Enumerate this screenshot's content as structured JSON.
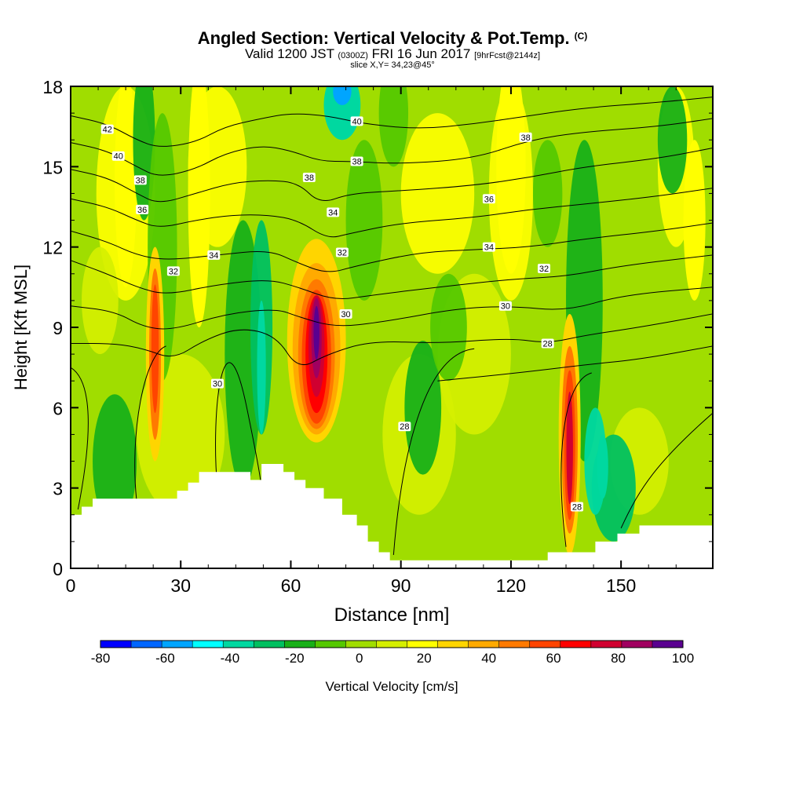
{
  "header": {
    "title": "Angled Section: Vertical Velocity & Pot.Temp.",
    "copyright": "(C)",
    "valid_main": "Valid 1200 JST",
    "valid_utc": "(0300Z)",
    "valid_date": "FRI 16 Jun 2017",
    "forecast": "[9hrFcst@2144z]",
    "slice": "slice X,Y= 34,23@45°"
  },
  "chart_data": {
    "type": "heatmap",
    "title": "Angled Section: Vertical Velocity & Pot.Temp.",
    "xlabel": "Distance [nm]",
    "ylabel": "Height [Kft MSL]",
    "xlim": [
      0,
      175
    ],
    "ylim": [
      0,
      18
    ],
    "x_ticks": [
      "0",
      "30",
      "60",
      "90",
      "120",
      "150"
    ],
    "y_ticks": [
      "0",
      "3",
      "6",
      "9",
      "12",
      "15",
      "18"
    ],
    "colorbar": {
      "label": "Vertical Velocity [cm/s]",
      "tick_labels": [
        "-80",
        "-60",
        "-40",
        "-20",
        "0",
        "20",
        "40",
        "60",
        "80",
        "100"
      ],
      "bins": [
        -80,
        -70,
        -60,
        -50,
        -40,
        -30,
        -20,
        -10,
        0,
        10,
        20,
        30,
        40,
        50,
        60,
        70,
        80,
        90,
        100
      ],
      "colors": [
        "#0000ff",
        "#0066ff",
        "#00a5ff",
        "#00ffff",
        "#00d8a0",
        "#00c060",
        "#18b018",
        "#55c800",
        "#a0dd00",
        "#d5ef00",
        "#ffff00",
        "#ffd500",
        "#ffaa00",
        "#ff7a00",
        "#ff4400",
        "#ff0000",
        "#d00030",
        "#a00060",
        "#5a0090"
      ]
    },
    "contour_labels": [
      {
        "text": "42",
        "x": 10,
        "y": 16.4
      },
      {
        "text": "40",
        "x": 13,
        "y": 15.4
      },
      {
        "text": "38",
        "x": 19,
        "y": 14.5
      },
      {
        "text": "36",
        "x": 19.5,
        "y": 13.4
      },
      {
        "text": "34",
        "x": 39,
        "y": 11.7
      },
      {
        "text": "32",
        "x": 28,
        "y": 11.1
      },
      {
        "text": "40",
        "x": 78,
        "y": 16.7
      },
      {
        "text": "38",
        "x": 78,
        "y": 15.2
      },
      {
        "text": "38",
        "x": 65,
        "y": 14.6
      },
      {
        "text": "34",
        "x": 71.5,
        "y": 13.3
      },
      {
        "text": "32",
        "x": 74,
        "y": 11.8
      },
      {
        "text": "30",
        "x": 75,
        "y": 9.5
      },
      {
        "text": "30",
        "x": 40,
        "y": 6.9
      },
      {
        "text": "36",
        "x": 114,
        "y": 13.8
      },
      {
        "text": "38",
        "x": 124,
        "y": 16.1
      },
      {
        "text": "34",
        "x": 114,
        "y": 12.0
      },
      {
        "text": "32",
        "x": 129,
        "y": 11.2
      },
      {
        "text": "30",
        "x": 118.5,
        "y": 9.8
      },
      {
        "text": "28",
        "x": 130,
        "y": 8.4
      },
      {
        "text": "28",
        "x": 91,
        "y": 5.3
      },
      {
        "text": "28",
        "x": 138,
        "y": 2.3
      }
    ]
  }
}
